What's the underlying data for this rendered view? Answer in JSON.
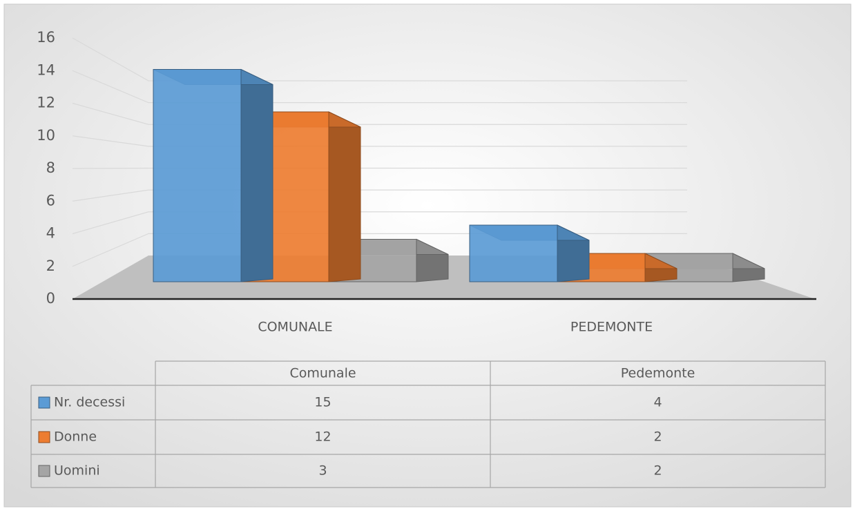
{
  "chart_data": {
    "type": "bar",
    "categories": [
      "COMUNALE",
      "PEDEMONTE"
    ],
    "table_categories": [
      "Comunale",
      "Pedemonte"
    ],
    "series": [
      {
        "name": "Nr. decessi",
        "color": "#5b9bd5",
        "values": [
          15,
          4
        ]
      },
      {
        "name": "Donne",
        "color": "#ed7d31",
        "values": [
          12,
          2
        ]
      },
      {
        "name": "Uomini",
        "color": "#a5a5a5",
        "values": [
          3,
          2
        ]
      }
    ],
    "ylim": [
      0,
      16
    ],
    "yticks": [
      0,
      2,
      4,
      6,
      8,
      10,
      12,
      14,
      16
    ],
    "grid": true
  }
}
